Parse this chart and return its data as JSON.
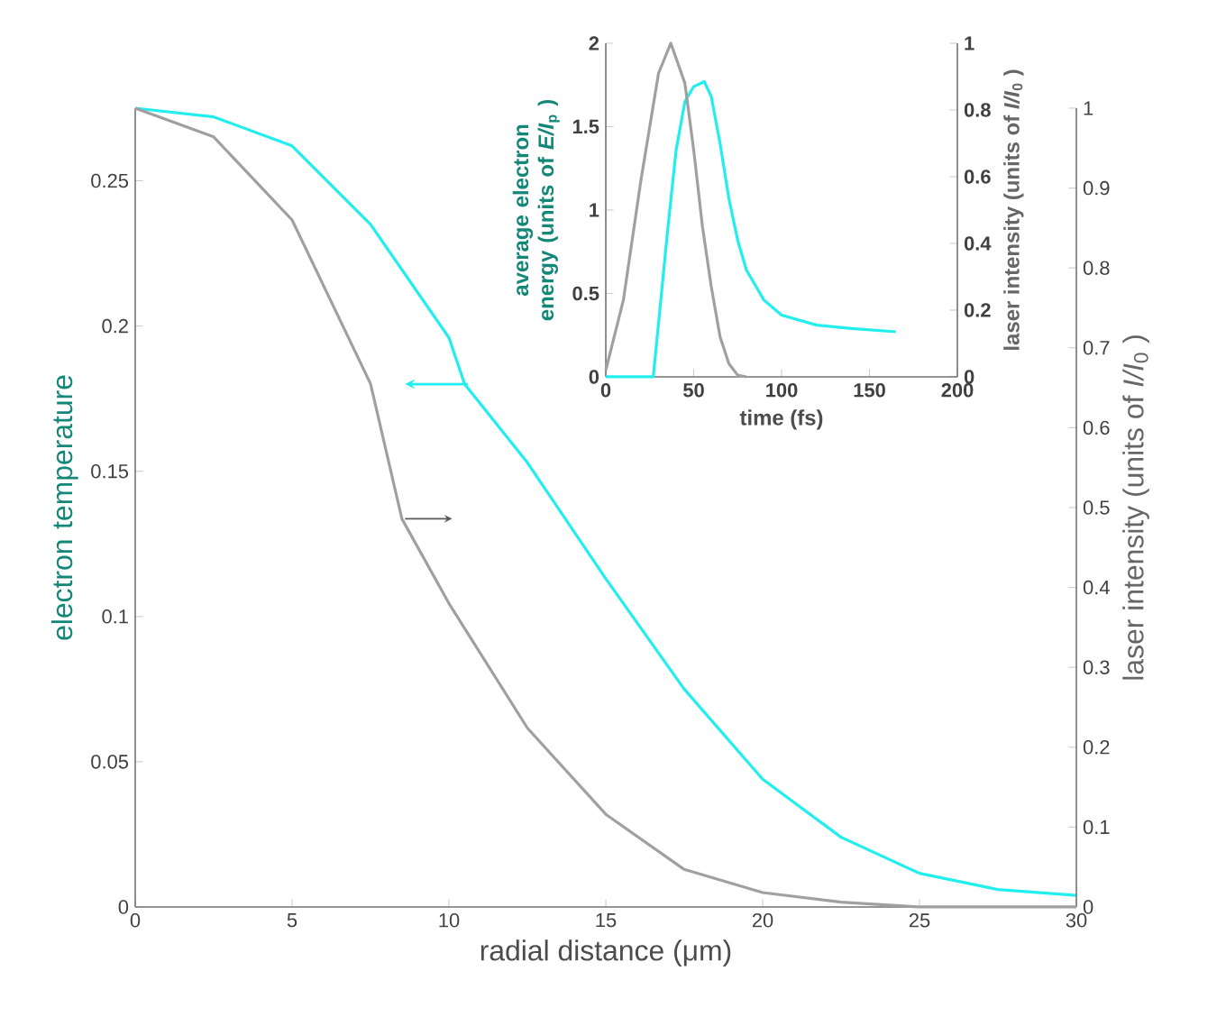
{
  "chart_data": [
    {
      "type": "line",
      "xlabel": "radial distance (μm)",
      "ylabel": "electron temperature",
      "y2label": "laser intensity (units of *I/I*$_{0}$ )",
      "xlim": [
        0,
        30
      ],
      "xticks": [
        0,
        5,
        10,
        15,
        20,
        25,
        30
      ],
      "ylim": [
        0,
        0.275
      ],
      "yticks": [
        0,
        0.05,
        0.1,
        0.15,
        0.2,
        0.25
      ],
      "y2lim": [
        0,
        1
      ],
      "y2ticks": [
        0,
        0.1,
        0.2,
        0.3,
        0.4,
        0.5,
        0.6,
        0.7,
        0.8,
        0.9,
        1
      ],
      "marker": "none",
      "series": [
        {
          "color": "#22eeee",
          "x": [
            0,
            2.5,
            5,
            7.5,
            10,
            10.5,
            12.5,
            15,
            17.5,
            20,
            22.5,
            25,
            27.5,
            30
          ],
          "values": [
            0.275,
            0.272,
            0.262,
            0.235,
            0.196,
            0.18,
            0.153,
            0.113,
            0.075,
            0.044,
            0.024,
            0.0116,
            0.006,
            0.004
          ]
        },
        {
          "color": "#a0a0a0",
          "axis": "y2",
          "x": [
            0,
            2.5,
            5,
            7.5,
            8.5,
            10,
            12.5,
            15,
            17.5,
            20,
            22.5,
            25,
            30
          ],
          "values": [
            1.0,
            0.964,
            0.86,
            0.655,
            0.486,
            0.38,
            0.224,
            0.116,
            0.047,
            0.018,
            0.006,
            0,
            0
          ]
        }
      ]
    },
    {
      "type": "line",
      "xlabel": "time (fs)",
      "ylabel": "average electron energy (units of *E/I*$_{p}$ )",
      "y2label": "laser intensity (units of *I/I*$_{0}$ )",
      "xlim": [
        0,
        200
      ],
      "xticks": [
        0,
        50,
        100,
        150,
        200
      ],
      "ylim": [
        0,
        2
      ],
      "yticks": [
        0,
        0.5,
        1,
        1.5,
        2
      ],
      "y2lim": [
        0,
        1
      ],
      "y2ticks": [
        0,
        0.2,
        0.4,
        0.6,
        0.8,
        1
      ],
      "marker": "none",
      "series": [
        {
          "color": "#22eeee",
          "x": [
            0,
            27,
            30,
            35,
            40,
            45,
            50,
            56,
            60,
            65,
            70,
            75,
            80,
            90,
            100,
            120,
            140,
            165
          ],
          "values": [
            0,
            0,
            0.32,
            0.86,
            1.36,
            1.65,
            1.74,
            1.77,
            1.68,
            1.4,
            1.07,
            0.82,
            0.64,
            0.46,
            0.37,
            0.31,
            0.29,
            0.27
          ]
        },
        {
          "color": "#a0a0a0",
          "axis": "y2",
          "x": [
            0,
            10,
            20,
            30,
            37,
            45,
            50,
            55,
            60,
            65,
            70,
            75,
            80
          ],
          "values": [
            0.02,
            0.23,
            0.59,
            0.91,
            1.0,
            0.88,
            0.68,
            0.45,
            0.27,
            0.12,
            0.04,
            0.005,
            0
          ]
        }
      ]
    }
  ]
}
